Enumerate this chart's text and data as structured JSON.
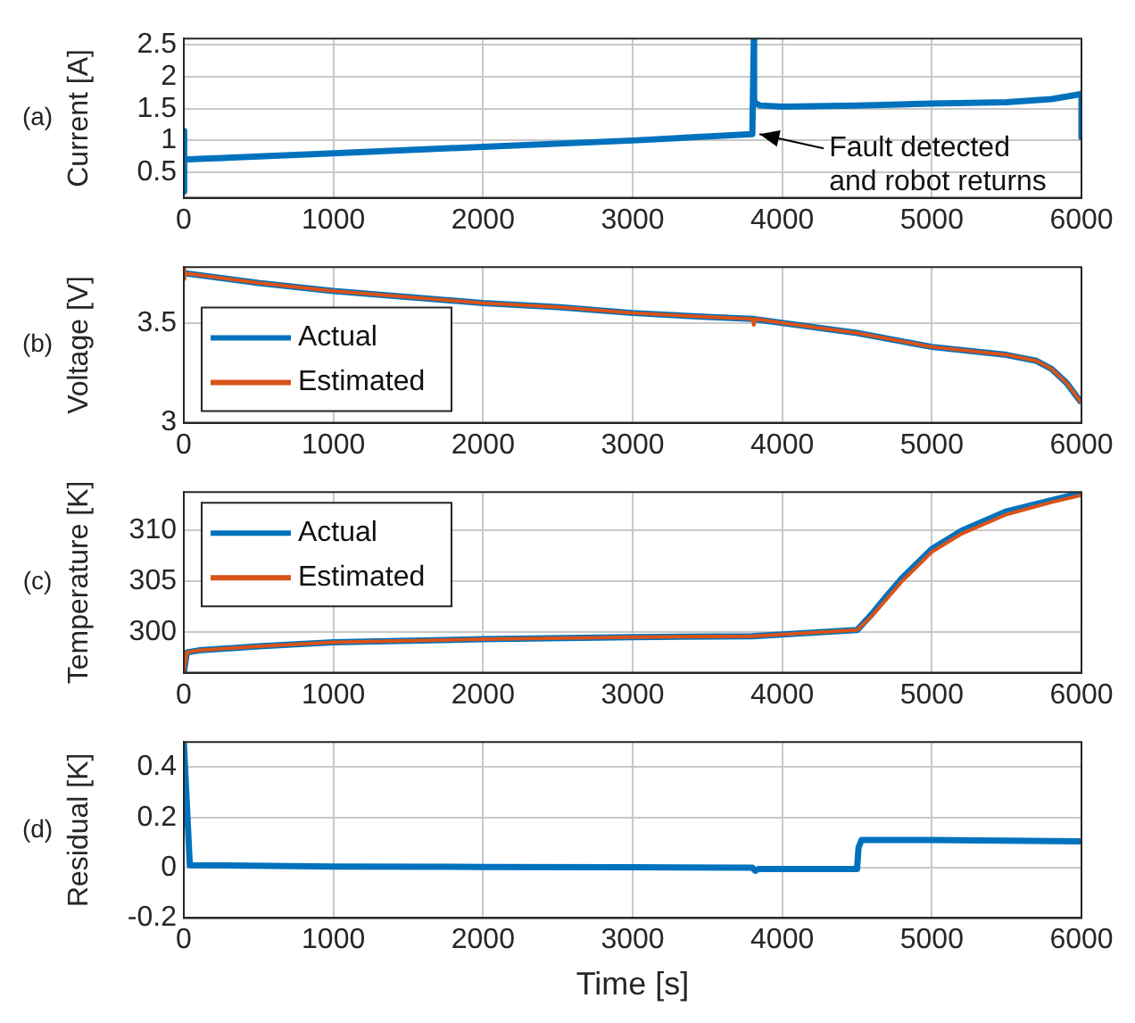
{
  "chart_data": [
    {
      "type": "line",
      "ylabel": "Current [A]",
      "annotations": [
        "(a)",
        {
          "text": "Fault detected\nand robot returns",
          "x": 3800,
          "y": 1.1
        }
      ],
      "xlim": [
        0,
        6000
      ],
      "xticks": [
        0,
        1000,
        2000,
        3000,
        4000,
        5000,
        6000
      ],
      "ylim": [
        0.1,
        2.6
      ],
      "yticks": [
        0.5,
        1,
        1.5,
        2,
        2.5
      ],
      "grid": true,
      "line_style": "solid",
      "marker": "none",
      "series": [
        {
          "color": "#0072bd",
          "x": [
            0,
            0,
            5,
            100,
            1000,
            2000,
            3000,
            3800,
            3810,
            3812,
            3850,
            4000,
            4500,
            5000,
            5500,
            5800,
            5950,
            6000,
            6000
          ],
          "values": [
            1.15,
            0.2,
            0.7,
            0.71,
            0.8,
            0.9,
            1.0,
            1.1,
            2.6,
            1.6,
            1.55,
            1.53,
            1.55,
            1.58,
            1.6,
            1.65,
            1.71,
            1.73,
            1.05
          ]
        }
      ]
    },
    {
      "type": "line",
      "ylabel": "Voltage [V]",
      "annotations": [
        "(b)"
      ],
      "xlim": [
        0,
        6000
      ],
      "xticks": [
        0,
        1000,
        2000,
        3000,
        4000,
        5000,
        6000
      ],
      "ylim": [
        3,
        3.78
      ],
      "yticks": [
        3,
        3.5
      ],
      "grid": true,
      "legend": "left",
      "line_style": "solid",
      "marker": "none",
      "series": [
        {
          "name": "Actual",
          "color": "#0072bd",
          "x": [
            0,
            500,
            1000,
            1500,
            2000,
            2500,
            3000,
            3500,
            3800,
            4000,
            4500,
            5000,
            5500,
            5700,
            5800,
            5900,
            6000
          ],
          "values": [
            3.75,
            3.7,
            3.66,
            3.63,
            3.6,
            3.58,
            3.55,
            3.53,
            3.52,
            3.5,
            3.45,
            3.38,
            3.34,
            3.31,
            3.27,
            3.2,
            3.1
          ]
        },
        {
          "name": "Estimated",
          "color": "#d95319",
          "x": [
            0,
            0,
            10,
            500,
            1000,
            1500,
            2000,
            2500,
            3000,
            3500,
            3800,
            3810,
            3820,
            4000,
            4500,
            5000,
            5500,
            5700,
            5800,
            5900,
            6000
          ],
          "values": [
            3.72,
            3.77,
            3.75,
            3.7,
            3.66,
            3.63,
            3.6,
            3.58,
            3.55,
            3.53,
            3.52,
            3.49,
            3.52,
            3.5,
            3.45,
            3.38,
            3.34,
            3.31,
            3.27,
            3.2,
            3.1
          ]
        }
      ]
    },
    {
      "type": "line",
      "ylabel": "Temperature [K]",
      "annotations": [
        "(c)"
      ],
      "xlim": [
        0,
        6000
      ],
      "xticks": [
        0,
        1000,
        2000,
        3000,
        4000,
        5000,
        6000
      ],
      "ylim": [
        296,
        313.8
      ],
      "yticks": [
        300,
        305,
        310
      ],
      "grid": true,
      "legend": "top left",
      "line_style": "solid",
      "marker": "none",
      "series": [
        {
          "name": "Actual",
          "color": "#0072bd",
          "x": [
            0,
            20,
            100,
            500,
            1000,
            2000,
            3000,
            3800,
            4500,
            4600,
            4700,
            4800,
            5000,
            5200,
            5500,
            5800,
            6000
          ],
          "values": [
            296,
            298,
            298.2,
            298.6,
            299,
            299.3,
            299.5,
            299.6,
            300.2,
            301.8,
            303.6,
            305.3,
            308.2,
            310,
            311.9,
            313,
            313.7
          ]
        },
        {
          "name": "Estimated",
          "color": "#d95319",
          "x": [
            0,
            20,
            100,
            500,
            1000,
            2000,
            3000,
            3800,
            4500,
            4600,
            4700,
            4800,
            5000,
            5200,
            5500,
            5800,
            6000
          ],
          "values": [
            296,
            298,
            298.2,
            298.6,
            299,
            299.3,
            299.5,
            299.6,
            300.2,
            301.6,
            303.3,
            305,
            307.9,
            309.7,
            311.6,
            312.8,
            313.5
          ]
        }
      ]
    },
    {
      "type": "line",
      "xlabel": "Time [s]",
      "ylabel": "Residual [K]",
      "annotations": [
        "(d)"
      ],
      "xlim": [
        0,
        6000
      ],
      "xticks": [
        0,
        1000,
        2000,
        3000,
        4000,
        5000,
        6000
      ],
      "ylim": [
        -0.2,
        0.5
      ],
      "yticks": [
        -0.2,
        0,
        0.2,
        0.4
      ],
      "grid": true,
      "line_style": "solid",
      "marker": "none",
      "series": [
        {
          "color": "#0072bd",
          "x": [
            0,
            40,
            1000,
            2000,
            3000,
            3800,
            3820,
            3840,
            4500,
            4510,
            4530,
            5000,
            5500,
            6000
          ],
          "values": [
            0.5,
            0.01,
            0.005,
            0.003,
            0.002,
            0.0,
            -0.012,
            -0.005,
            -0.005,
            0.08,
            0.11,
            0.11,
            0.108,
            0.105
          ]
        }
      ]
    }
  ]
}
